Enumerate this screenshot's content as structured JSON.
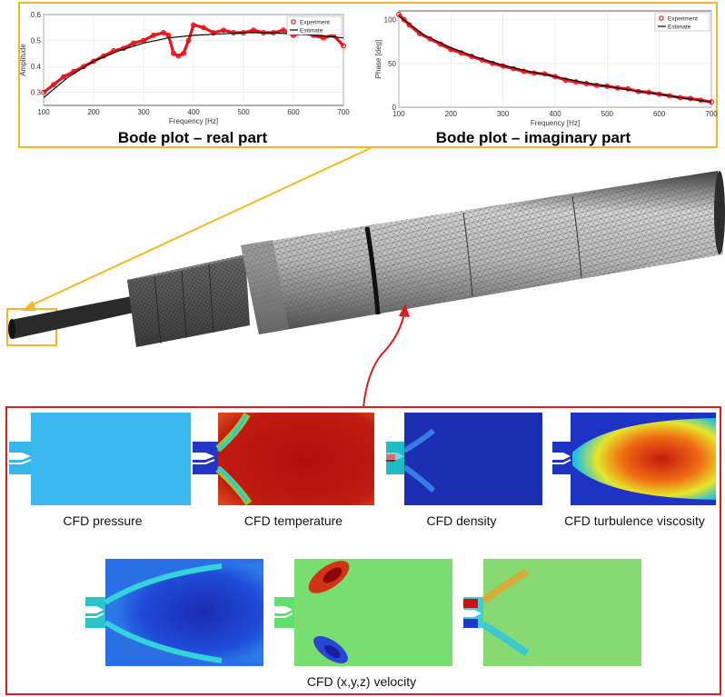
{
  "bode": {
    "real": {
      "title": "Bode plot – real part",
      "ylabel": "Amplitude",
      "xlabel": "Frequency [Hz]",
      "legend": [
        "Experiment",
        "Estimate"
      ],
      "xticks": [
        "100",
        "200",
        "300",
        "400",
        "500",
        "600",
        "700"
      ],
      "yticks": [
        "0.3",
        "0.4",
        "0.5",
        "0.6"
      ]
    },
    "imag": {
      "title": "Bode plot – imaginary part",
      "ylabel": "Phase [deg]",
      "xlabel": "Frequency [Hz]",
      "legend": [
        "Experiment",
        "Estimate"
      ],
      "xticks": [
        "100",
        "200",
        "300",
        "400",
        "500",
        "600",
        "700"
      ],
      "yticks": [
        "0",
        "50",
        "100"
      ]
    }
  },
  "cfd": {
    "captions": {
      "pressure": "CFD pressure",
      "temperature": "CFD temperature",
      "density": "CFD density",
      "viscosity": "CFD turbulence viscosity",
      "velocity": "CFD (x,y,z) velocity"
    }
  },
  "colors": {
    "bode_border": "#f2b722",
    "cfd_border": "#d62020",
    "experiment": "#e8141a",
    "estimate": "#000000",
    "mesh": "#5a5a5a"
  },
  "chart_data": [
    {
      "type": "line",
      "title": "Bode plot – real part",
      "xlabel": "Frequency [Hz]",
      "ylabel": "Amplitude",
      "xlim": [
        100,
        700
      ],
      "ylim": [
        0.25,
        0.6
      ],
      "legend_position": "top-right",
      "series": [
        {
          "name": "Experiment",
          "x": [
            100,
            120,
            140,
            160,
            180,
            200,
            220,
            240,
            260,
            280,
            300,
            320,
            340,
            350,
            360,
            370,
            380,
            390,
            400,
            420,
            440,
            460,
            480,
            500,
            520,
            540,
            560,
            580,
            600,
            620,
            640,
            660,
            680,
            700
          ],
          "y": [
            0.3,
            0.33,
            0.36,
            0.38,
            0.4,
            0.42,
            0.44,
            0.46,
            0.47,
            0.49,
            0.5,
            0.52,
            0.53,
            0.52,
            0.45,
            0.44,
            0.45,
            0.5,
            0.56,
            0.55,
            0.53,
            0.54,
            0.53,
            0.53,
            0.54,
            0.53,
            0.53,
            0.54,
            0.52,
            0.53,
            0.52,
            0.51,
            0.52,
            0.48
          ]
        },
        {
          "name": "Estimate",
          "x": [
            100,
            150,
            200,
            250,
            300,
            350,
            400,
            450,
            500,
            550,
            600,
            650,
            700
          ],
          "y": [
            0.28,
            0.36,
            0.42,
            0.46,
            0.49,
            0.51,
            0.52,
            0.525,
            0.53,
            0.53,
            0.525,
            0.52,
            0.51
          ]
        }
      ]
    },
    {
      "type": "line",
      "title": "Bode plot – imaginary part",
      "xlabel": "Frequency [Hz]",
      "ylabel": "Phase [deg]",
      "xlim": [
        100,
        700
      ],
      "ylim": [
        0,
        110
      ],
      "legend_position": "top-right",
      "series": [
        {
          "name": "Experiment",
          "x": [
            100,
            110,
            120,
            140,
            160,
            180,
            200,
            220,
            240,
            260,
            280,
            300,
            320,
            340,
            360,
            380,
            400,
            420,
            440,
            460,
            480,
            500,
            520,
            540,
            560,
            580,
            600,
            620,
            640,
            660,
            680,
            700
          ],
          "y": [
            106,
            100,
            94,
            84,
            78,
            72,
            66,
            62,
            58,
            54,
            50,
            47,
            44,
            41,
            39,
            38,
            35,
            31,
            29,
            27,
            25,
            24,
            22,
            21,
            18,
            17,
            15,
            13,
            11,
            10,
            8,
            6
          ]
        },
        {
          "name": "Estimate",
          "x": [
            100,
            150,
            200,
            250,
            300,
            350,
            400,
            450,
            500,
            550,
            600,
            650,
            700
          ],
          "y": [
            104,
            82,
            68,
            57,
            48,
            41,
            35,
            29,
            24,
            19,
            15,
            10,
            6
          ]
        }
      ]
    }
  ]
}
